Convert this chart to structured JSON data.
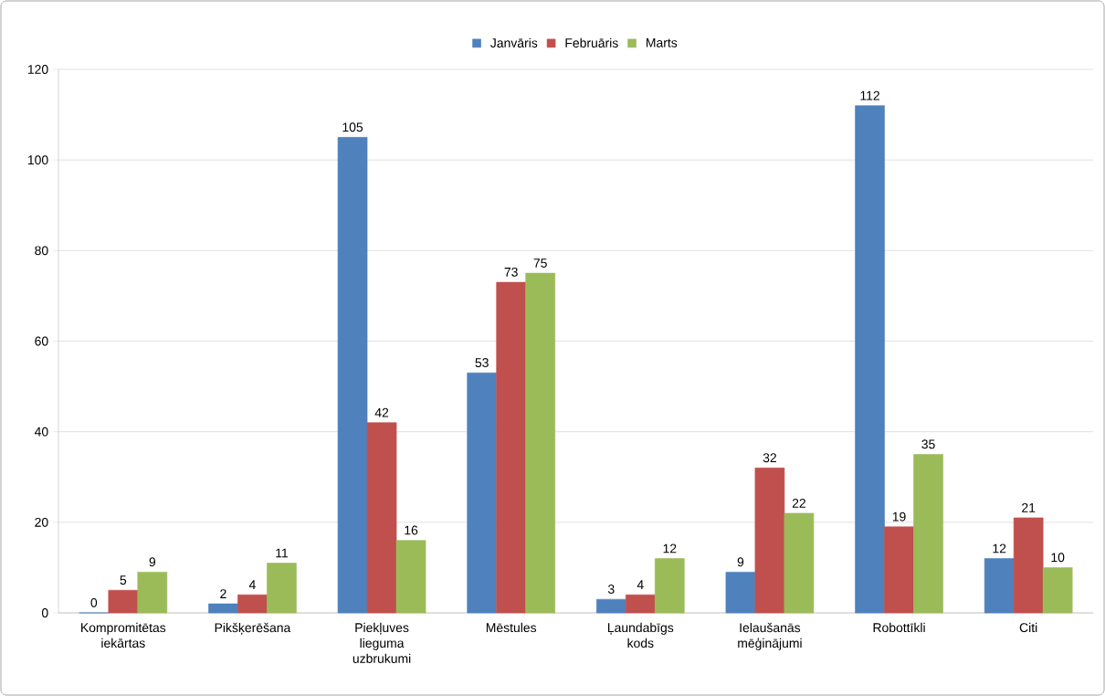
{
  "chart_data": {
    "type": "bar",
    "categories": [
      "Kompromitētas iekārtas",
      "Pikšķerēšana",
      "Piekļuves lieguma uzbrukumi",
      "Mēstules",
      "Ļaundabīgs kods",
      "Ielaušanās mēģinājumi",
      "Robottīkli",
      "Citi"
    ],
    "series": [
      {
        "name": "Janvāris",
        "color": "#4f81bd",
        "values": [
          0,
          2,
          105,
          53,
          3,
          9,
          112,
          12
        ]
      },
      {
        "name": "Februāris",
        "color": "#c0504d",
        "values": [
          5,
          4,
          42,
          73,
          4,
          32,
          19,
          21
        ]
      },
      {
        "name": "Marts",
        "color": "#9bbb59",
        "values": [
          9,
          11,
          16,
          75,
          12,
          22,
          35,
          10
        ]
      }
    ],
    "ylim": [
      0,
      120
    ],
    "yticks": [
      0,
      20,
      40,
      60,
      80,
      100,
      120
    ],
    "grid": "y",
    "legend": "top",
    "data_labels": true
  }
}
